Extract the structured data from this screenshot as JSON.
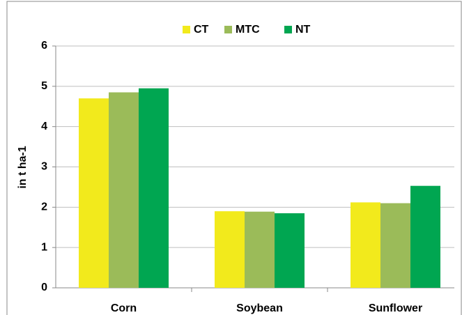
{
  "chart_data": {
    "type": "bar",
    "categories": [
      "Corn",
      "Soybean",
      "Sunflower"
    ],
    "series": [
      {
        "name": "CT",
        "color": "#f2ea1c",
        "values": [
          4.7,
          1.9,
          2.12
        ]
      },
      {
        "name": "MTC",
        "color": "#9bbb59",
        "values": [
          4.85,
          1.89,
          2.1
        ]
      },
      {
        "name": "NT",
        "color": "#00a651",
        "values": [
          4.95,
          1.85,
          2.53
        ]
      }
    ],
    "y_label": "in t ha-1",
    "ylim": [
      0,
      6
    ],
    "yticks": [
      0,
      1,
      2,
      3,
      4,
      5,
      6
    ],
    "grid": true,
    "legend": "top"
  }
}
